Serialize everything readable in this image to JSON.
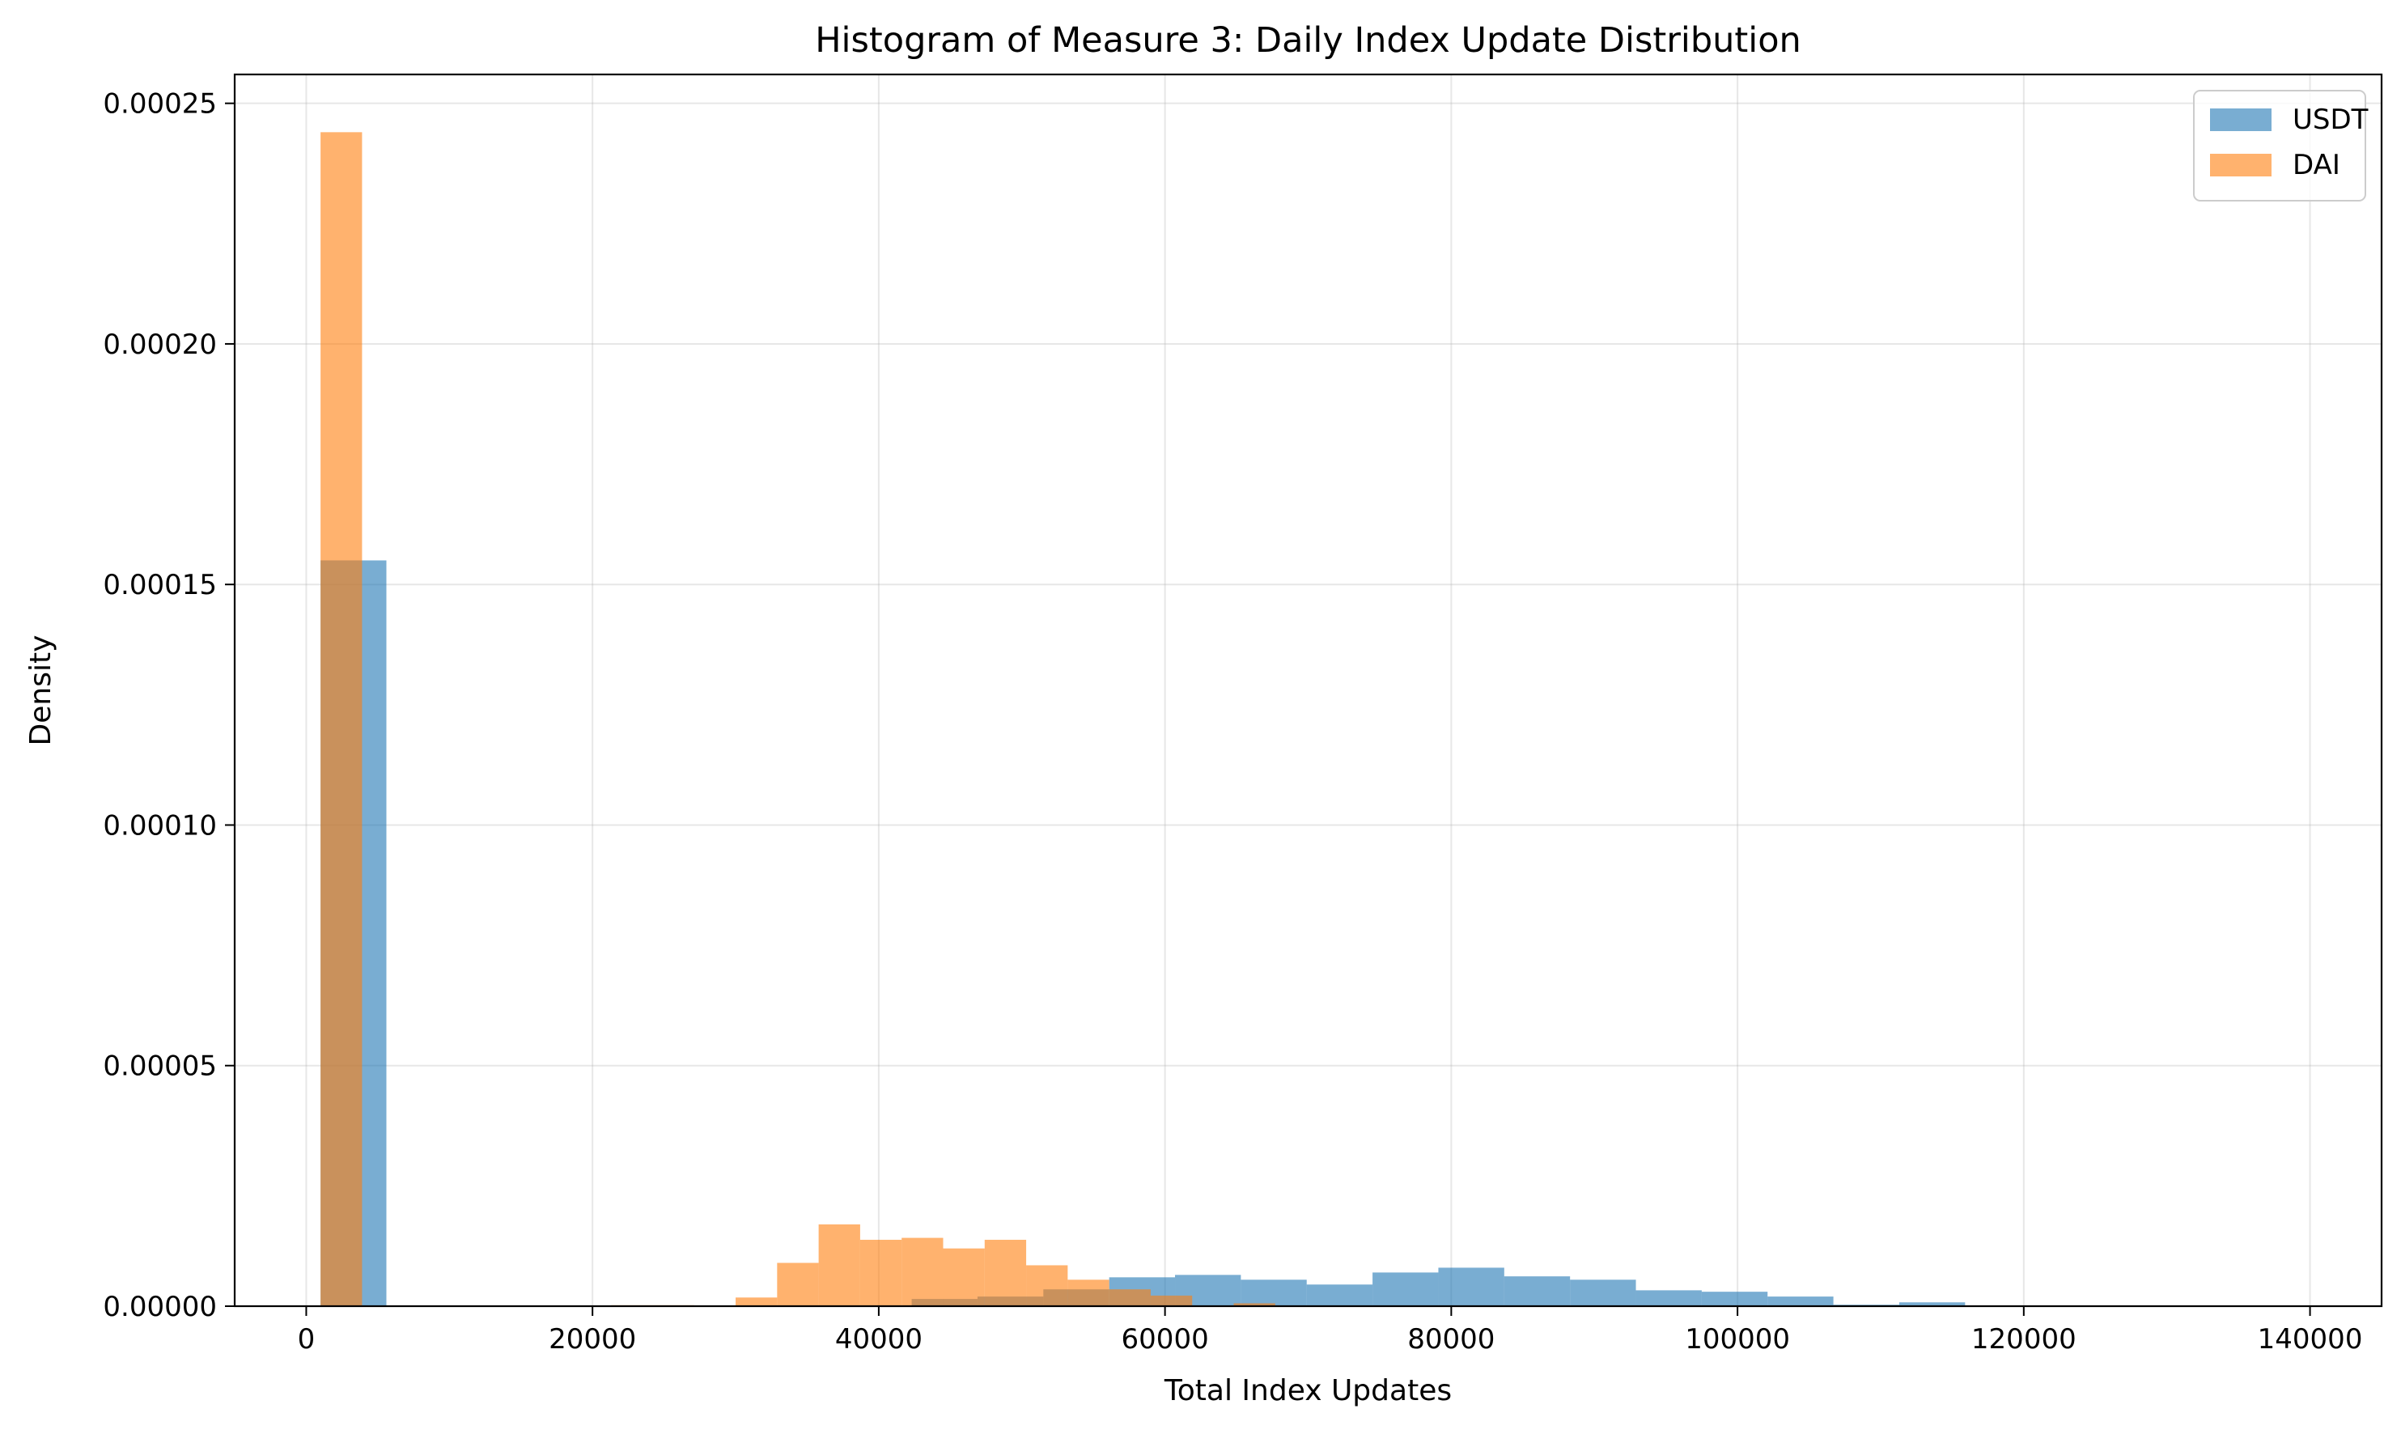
{
  "chart_data": {
    "type": "bar",
    "subtype": "overlapping-histogram",
    "title": "Histogram of Measure 3: Daily Index Update Distribution",
    "xlabel": "Total Index Updates",
    "ylabel": "Density",
    "xlim": [
      -5000,
      145000
    ],
    "ylim": [
      0,
      0.000256
    ],
    "x_ticks": [
      0,
      20000,
      40000,
      60000,
      80000,
      100000,
      120000,
      140000
    ],
    "x_tick_labels": [
      "0",
      "20000",
      "40000",
      "60000",
      "80000",
      "100000",
      "120000",
      "140000"
    ],
    "y_ticks": [
      0,
      5e-05,
      0.0001,
      0.00015,
      0.0002,
      0.00025
    ],
    "y_tick_labels": [
      "0.00000",
      "0.00005",
      "0.00010",
      "0.00015",
      "0.00020",
      "0.00025"
    ],
    "grid": true,
    "legend_position": "top-right",
    "series": [
      {
        "name": "USDT",
        "color": "#1f77b4",
        "alpha": 0.6,
        "bins": [
          {
            "x0": 1000,
            "x1": 5600,
            "density": 0.000155
          },
          {
            "x0": 42300,
            "x1": 46900,
            "density": 1.5e-06
          },
          {
            "x0": 46900,
            "x1": 51500,
            "density": 2e-06
          },
          {
            "x0": 51500,
            "x1": 56100,
            "density": 3.5e-06
          },
          {
            "x0": 56100,
            "x1": 60700,
            "density": 6e-06
          },
          {
            "x0": 60700,
            "x1": 65300,
            "density": 6.5e-06
          },
          {
            "x0": 65300,
            "x1": 69900,
            "density": 5.5e-06
          },
          {
            "x0": 69900,
            "x1": 74500,
            "density": 4.5e-06
          },
          {
            "x0": 74500,
            "x1": 79100,
            "density": 7e-06
          },
          {
            "x0": 79100,
            "x1": 83700,
            "density": 8e-06
          },
          {
            "x0": 83700,
            "x1": 88300,
            "density": 6.2e-06
          },
          {
            "x0": 88300,
            "x1": 92900,
            "density": 5.5e-06
          },
          {
            "x0": 92900,
            "x1": 97500,
            "density": 3.3e-06
          },
          {
            "x0": 97500,
            "x1": 102100,
            "density": 3e-06
          },
          {
            "x0": 102100,
            "x1": 106700,
            "density": 2e-06
          },
          {
            "x0": 106700,
            "x1": 111300,
            "density": 3e-07
          },
          {
            "x0": 111300,
            "x1": 115900,
            "density": 8e-07
          }
        ]
      },
      {
        "name": "DAI",
        "color": "#ff7f0e",
        "alpha": 0.6,
        "bins": [
          {
            "x0": 1000,
            "x1": 3900,
            "density": 0.000244
          },
          {
            "x0": 21300,
            "x1": 24200,
            "density": 2e-07
          },
          {
            "x0": 24200,
            "x1": 27100,
            "density": 2e-07
          },
          {
            "x0": 30000,
            "x1": 32900,
            "density": 1.8e-06
          },
          {
            "x0": 32900,
            "x1": 35800,
            "density": 9e-06
          },
          {
            "x0": 35800,
            "x1": 38700,
            "density": 1.7e-05
          },
          {
            "x0": 38700,
            "x1": 41600,
            "density": 1.38e-05
          },
          {
            "x0": 41600,
            "x1": 44500,
            "density": 1.42e-05
          },
          {
            "x0": 44500,
            "x1": 47400,
            "density": 1.2e-05
          },
          {
            "x0": 47400,
            "x1": 50300,
            "density": 1.38e-05
          },
          {
            "x0": 50300,
            "x1": 53200,
            "density": 8.5e-06
          },
          {
            "x0": 53200,
            "x1": 56100,
            "density": 5.5e-06
          },
          {
            "x0": 56100,
            "x1": 59000,
            "density": 3.5e-06
          },
          {
            "x0": 59000,
            "x1": 61900,
            "density": 2.2e-06
          },
          {
            "x0": 64800,
            "x1": 67700,
            "density": 6e-07
          }
        ]
      }
    ]
  }
}
